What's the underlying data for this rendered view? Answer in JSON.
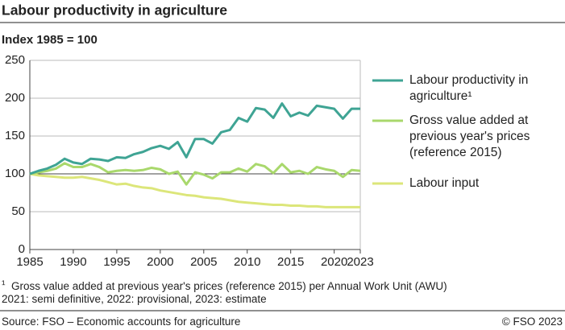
{
  "chart_data": {
    "type": "line",
    "title": "Labour productivity in agriculture",
    "subtitle": "Index 1985 = 100",
    "x": [
      1985,
      1986,
      1987,
      1988,
      1989,
      1990,
      1991,
      1992,
      1993,
      1994,
      1995,
      1996,
      1997,
      1998,
      1999,
      2000,
      2001,
      2002,
      2003,
      2004,
      2005,
      2006,
      2007,
      2008,
      2009,
      2010,
      2011,
      2012,
      2013,
      2014,
      2015,
      2016,
      2017,
      2018,
      2019,
      2020,
      2021,
      2022,
      2023
    ],
    "series": [
      {
        "name": "Labour productivity in agriculture¹",
        "color": "#3fa494",
        "values": [
          100,
          104,
          107,
          112,
          120,
          115,
          113,
          120,
          119,
          117,
          122,
          121,
          126,
          129,
          134,
          137,
          133,
          142,
          122,
          146,
          146,
          140,
          155,
          158,
          174,
          169,
          187,
          185,
          174,
          193,
          176,
          181,
          177,
          190,
          188,
          186,
          173,
          186,
          186
        ]
      },
      {
        "name": "Gross value added at previous year's prices (reference 2015)",
        "color": "#a9d86c",
        "values": [
          100,
          102,
          104,
          107,
          114,
          109,
          109,
          113,
          109,
          102,
          104,
          105,
          104,
          105,
          108,
          106,
          100,
          103,
          86,
          102,
          99,
          94,
          102,
          102,
          107,
          103,
          113,
          110,
          101,
          113,
          102,
          104,
          100,
          109,
          106,
          104,
          96,
          105,
          104
        ]
      },
      {
        "name": "Labour input",
        "color": "#dce67a",
        "values": [
          100,
          98,
          97,
          96,
          95,
          95,
          96,
          94,
          92,
          89,
          86,
          87,
          84,
          82,
          81,
          78,
          76,
          74,
          72,
          71,
          69,
          68,
          67,
          65,
          63,
          62,
          61,
          60,
          59,
          59,
          58,
          58,
          57,
          57,
          56,
          56,
          56,
          56,
          56
        ]
      }
    ],
    "xlim": [
      1985,
      2023
    ],
    "xticks": [
      1985,
      1990,
      1995,
      2000,
      2005,
      2010,
      2015,
      2020,
      2023
    ],
    "ylim": [
      0,
      250
    ],
    "yticks": [
      0,
      50,
      100,
      150,
      200,
      250
    ],
    "grid": true,
    "footnote": {
      "marker": "¹",
      "text": "Gross value added at previous year's prices (reference 2015) per Annual Work Unit (AWU)"
    },
    "note": "2021: semi definitive, 2022: provisional, 2023: estimate",
    "source": "Source: FSO – Economic accounts for agriculture",
    "copyright": "© FSO 2023"
  }
}
